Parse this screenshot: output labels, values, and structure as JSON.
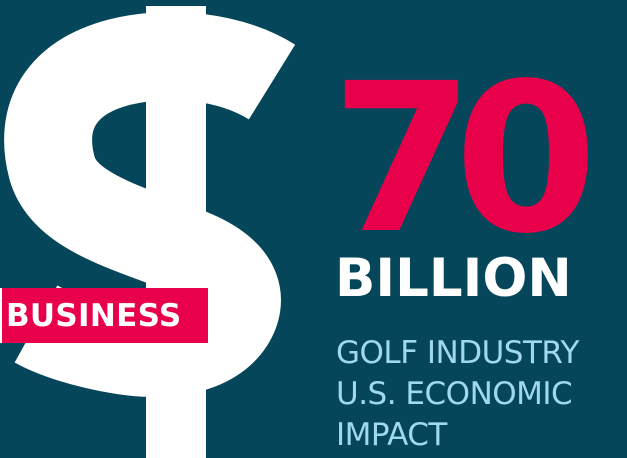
{
  "icon": "dollar-sign-icon",
  "badge": {
    "label": "BUSINESS"
  },
  "stat": {
    "number": "70",
    "unit": "BILLION",
    "description_lines": [
      "GOLF INDUSTRY",
      "U.S. ECONOMIC",
      "IMPACT"
    ]
  },
  "colors": {
    "background": "#06465a",
    "accent": "#e8004a",
    "primary_text": "#ffffff",
    "secondary_text": "#9fd8f0"
  }
}
